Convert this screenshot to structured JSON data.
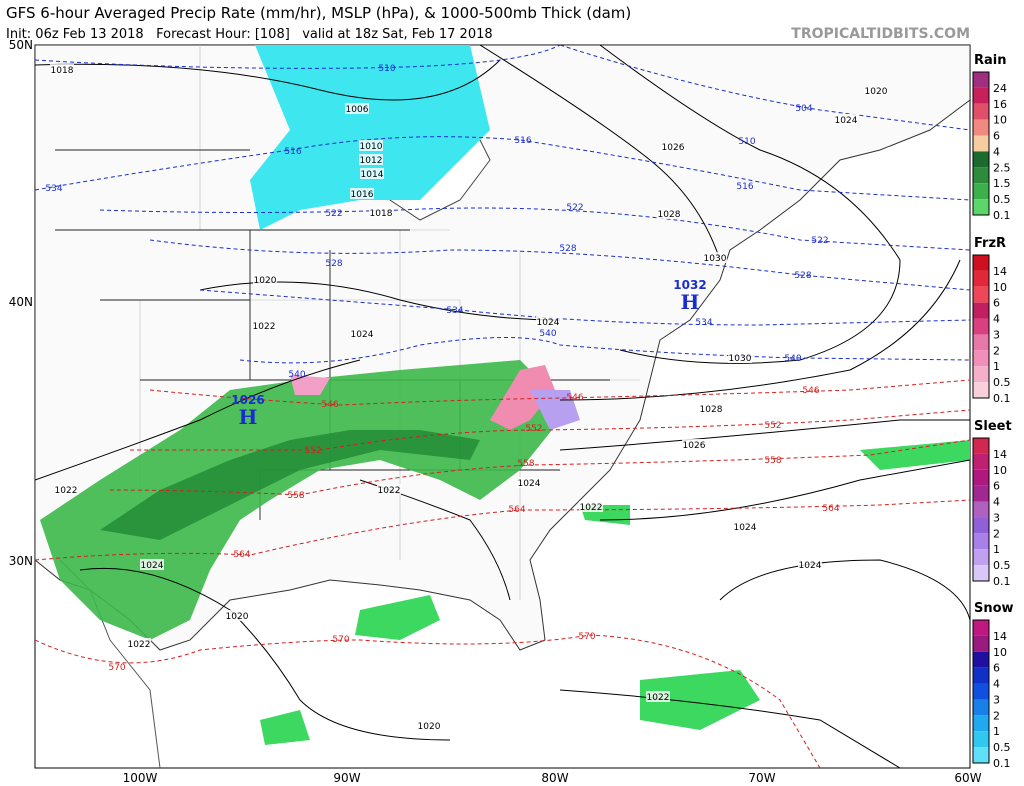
{
  "header": {
    "title": "GFS 6-hour Averaged Precip Rate (mm/hr), MSLP (hPa), & 1000-500mb Thick (dam)",
    "subtitle": "Init: 06z Feb 13 2018   Forecast Hour: [108]   valid at 18z Sat, Feb 17 2018",
    "source": "TROPICALTIDBITS.COM"
  },
  "map": {
    "lat_labels": [
      "50N",
      "40N",
      "30N"
    ],
    "lon_labels": [
      "100W",
      "90W",
      "80W",
      "70W",
      "60W"
    ],
    "isobar_labels": [
      "1018",
      "1006",
      "1010",
      "1012",
      "1014",
      "1016",
      "1018",
      "1026",
      "1020",
      "1024",
      "1028",
      "1030",
      "1020",
      "1022",
      "1024",
      "1024",
      "1030",
      "1028",
      "1026",
      "1022",
      "1022",
      "1024",
      "1022",
      "1024",
      "1024",
      "1024",
      "1020",
      "1022",
      "1020",
      "1022"
    ],
    "thickness_labels": [
      "510",
      "504",
      "510",
      "516",
      "516",
      "516",
      "534",
      "522",
      "522",
      "522",
      "528",
      "528",
      "528",
      "534",
      "534",
      "540",
      "540",
      "540",
      "546",
      "546",
      "546",
      "552",
      "552",
      "552",
      "558",
      "558",
      "558",
      "564",
      "564",
      "564",
      "570",
      "570",
      "570"
    ],
    "highs": [
      {
        "value": "1026",
        "letter": "H"
      },
      {
        "value": "1032",
        "letter": "H"
      }
    ]
  },
  "legends": [
    {
      "title": "Rain",
      "labels": [
        "24",
        "16",
        "10",
        "6",
        "4",
        "2.5",
        "1.5",
        "0.5",
        "0.1"
      ]
    },
    {
      "title": "FrzR",
      "labels": [
        "14",
        "10",
        "6",
        "4",
        "3",
        "2",
        "1",
        "0.5",
        "0.1"
      ]
    },
    {
      "title": "Sleet",
      "labels": [
        "14",
        "10",
        "6",
        "4",
        "3",
        "2",
        "1",
        "0.5",
        "0.1"
      ]
    },
    {
      "title": "Snow",
      "labels": [
        "14",
        "10",
        "6",
        "4",
        "3",
        "2",
        "1",
        "0.5",
        "0.1"
      ]
    }
  ]
}
